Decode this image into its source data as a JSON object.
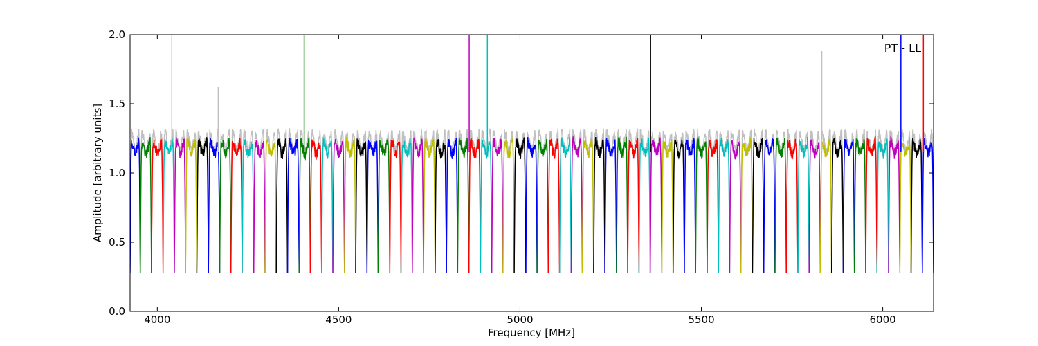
{
  "chart_data": {
    "type": "line",
    "xlabel": "Frequency [MHz]",
    "ylabel": "Amplitude [arbitrary units]",
    "annotation": "PT - LL",
    "xlim": [
      3925,
      6140
    ],
    "ylim": [
      0,
      2.0
    ],
    "xticks": [
      4000,
      4500,
      5000,
      5500,
      6000
    ],
    "yticks": [
      0.0,
      0.5,
      1.0,
      1.5,
      2.0
    ],
    "xtick_labels": [
      "4000",
      "4500",
      "5000",
      "5500",
      "6000"
    ],
    "ytick_labels": [
      "0.0",
      "0.5",
      "1.0",
      "1.5",
      "2.0"
    ],
    "grid": false,
    "colors": [
      "#0000ff",
      "#008000",
      "#ff0000",
      "#00bfbf",
      "#bf00bf",
      "#bfbf00",
      "#000000"
    ],
    "background_color": "#c0c0c0",
    "band_edges_mhz": [
      3925,
      3953,
      3984,
      4016,
      4047,
      4078,
      4109,
      4141,
      4172,
      4203,
      4234,
      4266,
      4297,
      4328,
      4359,
      4391,
      4422,
      4453,
      4484,
      4516,
      4547,
      4578,
      4609,
      4641,
      4672,
      4703,
      4734,
      4766,
      4797,
      4828,
      4859,
      4891,
      4922,
      4953,
      4984,
      5016,
      5047,
      5078,
      5109,
      5141,
      5172,
      5203,
      5234,
      5266,
      5297,
      5328,
      5359,
      5391,
      5422,
      5453,
      5484,
      5516,
      5547,
      5578,
      5609,
      5641,
      5672,
      5703,
      5734,
      5766,
      5797,
      5828,
      5859,
      5891,
      5922,
      5953,
      5984,
      6016,
      6047,
      6078,
      6109,
      6140
    ],
    "band_plateau_level": 1.18,
    "band_edge_level": 0.28,
    "spikes": [
      {
        "x": 4040,
        "y": 2.0,
        "series": "background"
      },
      {
        "x": 4405,
        "y": 2.0,
        "series": "green"
      },
      {
        "x": 4860,
        "y": 2.0,
        "series": "magenta"
      },
      {
        "x": 4910,
        "y": 2.0,
        "series": "cyan"
      },
      {
        "x": 5360,
        "y": 2.0,
        "series": "black"
      },
      {
        "x": 6050,
        "y": 2.0,
        "series": "blue"
      },
      {
        "x": 6112,
        "y": 2.0,
        "series": "red"
      },
      {
        "x": 5832,
        "y": 1.88,
        "series": "background"
      },
      {
        "x": 4168,
        "y": 1.62,
        "series": "background"
      }
    ]
  }
}
